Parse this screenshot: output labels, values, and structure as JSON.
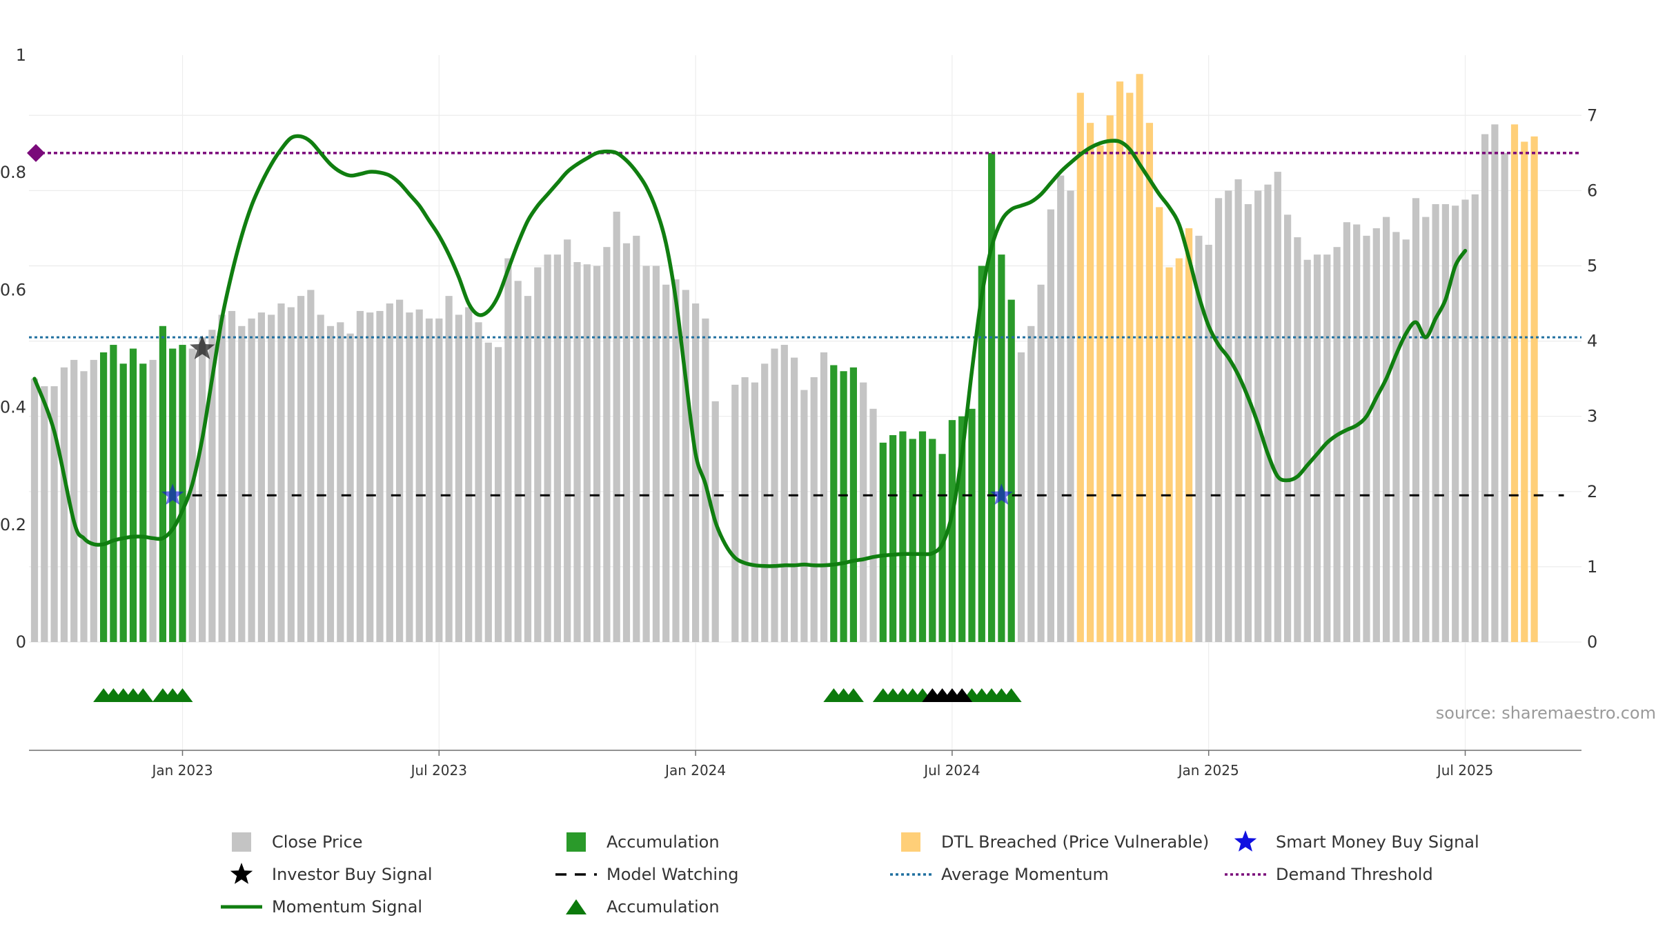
{
  "source": "source: sharemaestro.com",
  "colors": {
    "close_price": "#c4c4c4",
    "accumulation": "#2a9a2a",
    "dtl_breached": "#ffcf78",
    "momentum": "#107e10",
    "smart_money": "#1010e0",
    "investor_buy": "#000000",
    "model_watching": "#000000",
    "average_momentum": "#1f6f9f",
    "demand_threshold": "#7a0a7a"
  },
  "legend": [
    {
      "key": "close_price",
      "label": "Close Price",
      "icon": "square-icon"
    },
    {
      "key": "accumulation",
      "label": "Accumulation",
      "icon": "square-icon"
    },
    {
      "key": "dtl_breached",
      "label": "DTL Breached (Price Vulnerable)",
      "icon": "square-icon"
    },
    {
      "key": "smart_money",
      "label": "Smart Money Buy Signal",
      "icon": "star-icon"
    },
    {
      "key": "investor_buy",
      "label": "Investor Buy Signal",
      "icon": "star-icon"
    },
    {
      "key": "model_watching",
      "label": "Model Watching",
      "icon": "dash-icon"
    },
    {
      "key": "average_momentum",
      "label": "Average Momentum",
      "icon": "dotted-line-icon"
    },
    {
      "key": "demand_threshold",
      "label": "Demand Threshold",
      "icon": "dotted-line-icon"
    },
    {
      "key": "momentum",
      "label": "Momentum Signal",
      "icon": "line-icon"
    },
    {
      "key": "accumulation",
      "label": "Accumulation",
      "icon": "triangle-icon"
    }
  ],
  "chart_data": {
    "type": "bar",
    "x_ticks": [
      "Jan 2023",
      "Jul 2023",
      "Jan 2024",
      "Jul 2024",
      "Jan 2025",
      "Jul 2025"
    ],
    "x_tick_weeks": [
      15,
      41,
      67,
      93,
      119,
      145
    ],
    "left_axis": {
      "ticks": [
        "0",
        "0.2",
        "0.4",
        "0.6",
        "0.8",
        "1"
      ],
      "ylim": [
        0,
        1
      ]
    },
    "right_axis": {
      "ticks": [
        "0",
        "1",
        "2",
        "3",
        "4",
        "5",
        "6",
        "7"
      ],
      "ylim": [
        0,
        7.8
      ]
    },
    "grid": true,
    "legend_position": "bottom",
    "close_price": {
      "values": [
        3.5,
        3.4,
        3.4,
        3.65,
        3.75,
        3.6,
        3.75,
        3.85,
        3.95,
        3.7,
        3.9,
        3.7,
        3.75,
        4.2,
        3.9,
        3.95,
        3.9,
        4.05,
        4.15,
        4.35,
        4.4,
        4.2,
        4.3,
        4.38,
        4.35,
        4.5,
        4.45,
        4.6,
        4.68,
        4.35,
        4.2,
        4.25,
        4.1,
        4.4,
        4.38,
        4.4,
        4.5,
        4.55,
        4.38,
        4.42,
        4.3,
        4.3,
        4.6,
        4.35,
        4.45,
        4.25,
        3.98,
        3.92,
        5.1,
        4.8,
        4.6,
        4.98,
        5.15,
        5.15,
        5.35,
        5.05,
        5.02,
        5.0,
        5.25,
        5.72,
        5.3,
        5.4,
        5.0,
        5.0,
        4.75,
        4.82,
        4.68,
        4.5,
        4.3,
        3.2,
        0,
        3.42,
        3.52,
        3.45,
        3.7,
        3.9,
        3.95,
        3.78,
        3.35,
        3.52,
        3.85,
        3.68,
        3.6,
        3.65,
        3.45,
        3.1,
        2.65,
        2.75,
        2.8,
        2.7,
        2.8,
        2.7,
        2.5,
        2.95,
        3.0,
        3.1,
        5.0,
        6.5,
        5.15,
        4.55,
        3.85,
        4.2,
        4.75,
        5.75,
        6.2,
        6.0,
        7.3,
        6.9,
        6.6,
        7.0,
        7.45,
        7.3,
        7.55,
        6.9,
        5.78,
        4.98,
        5.1,
        5.5,
        5.4,
        5.28,
        5.9,
        6.0,
        6.15,
        5.82,
        6.0,
        6.08,
        6.25,
        5.68,
        5.38,
        5.08,
        5.15,
        5.15,
        5.25,
        5.58,
        5.55,
        5.4,
        5.5,
        5.65,
        5.45,
        5.35,
        5.9,
        5.65,
        5.82,
        5.82,
        5.8,
        5.88,
        5.95,
        6.75,
        6.88,
        6.5,
        6.88,
        6.65,
        6.72
      ],
      "accumulation_bars": [
        7,
        8,
        9,
        10,
        11,
        13,
        14,
        15,
        81,
        82,
        83,
        86,
        87,
        88,
        89,
        90,
        91,
        92,
        93,
        94,
        95,
        96,
        97,
        98,
        99
      ],
      "dtl_breached_bars": [
        106,
        107,
        108,
        109,
        110,
        111,
        112,
        113,
        114,
        115,
        116,
        117,
        150,
        151,
        152,
        153,
        154,
        155
      ]
    },
    "momentum_signal": {
      "points": [
        [
          0,
          3.5
        ],
        [
          2,
          2.8
        ],
        [
          4,
          1.6
        ],
        [
          5,
          1.38
        ],
        [
          6,
          1.3
        ],
        [
          7,
          1.3
        ],
        [
          8,
          1.35
        ],
        [
          9,
          1.38
        ],
        [
          10,
          1.4
        ],
        [
          11,
          1.4
        ],
        [
          12,
          1.38
        ],
        [
          13,
          1.38
        ],
        [
          14,
          1.5
        ],
        [
          15,
          1.75
        ],
        [
          16,
          2.1
        ],
        [
          17,
          2.7
        ],
        [
          18,
          3.5
        ],
        [
          19,
          4.3
        ],
        [
          20,
          4.9
        ],
        [
          21,
          5.4
        ],
        [
          22,
          5.8
        ],
        [
          23,
          6.1
        ],
        [
          24,
          6.35
        ],
        [
          25,
          6.55
        ],
        [
          26,
          6.7
        ],
        [
          27,
          6.72
        ],
        [
          28,
          6.65
        ],
        [
          29,
          6.5
        ],
        [
          30,
          6.35
        ],
        [
          31,
          6.25
        ],
        [
          32,
          6.2
        ],
        [
          33,
          6.22
        ],
        [
          34,
          6.25
        ],
        [
          35,
          6.24
        ],
        [
          36,
          6.2
        ],
        [
          37,
          6.1
        ],
        [
          38,
          5.95
        ],
        [
          39,
          5.8
        ],
        [
          40,
          5.6
        ],
        [
          41,
          5.4
        ],
        [
          42,
          5.15
        ],
        [
          43,
          4.85
        ],
        [
          44,
          4.5
        ],
        [
          45,
          4.35
        ],
        [
          46,
          4.4
        ],
        [
          47,
          4.6
        ],
        [
          48,
          4.95
        ],
        [
          49,
          5.3
        ],
        [
          50,
          5.6
        ],
        [
          51,
          5.8
        ],
        [
          52,
          5.95
        ],
        [
          53,
          6.1
        ],
        [
          54,
          6.25
        ],
        [
          55,
          6.35
        ],
        [
          56,
          6.43
        ],
        [
          57,
          6.5
        ],
        [
          58,
          6.52
        ],
        [
          59,
          6.5
        ],
        [
          60,
          6.4
        ],
        [
          61,
          6.25
        ],
        [
          62,
          6.05
        ],
        [
          63,
          5.75
        ],
        [
          64,
          5.3
        ],
        [
          65,
          4.55
        ],
        [
          66,
          3.5
        ],
        [
          67,
          2.5
        ],
        [
          68,
          2.1
        ],
        [
          69,
          1.6
        ],
        [
          70,
          1.3
        ],
        [
          71,
          1.12
        ],
        [
          72,
          1.05
        ],
        [
          73,
          1.02
        ],
        [
          74,
          1.01
        ],
        [
          75,
          1.01
        ],
        [
          76,
          1.02
        ],
        [
          77,
          1.02
        ],
        [
          78,
          1.03
        ],
        [
          79,
          1.02
        ],
        [
          80,
          1.02
        ],
        [
          81,
          1.03
        ],
        [
          82,
          1.05
        ],
        [
          83,
          1.08
        ],
        [
          84,
          1.1
        ],
        [
          85,
          1.13
        ],
        [
          86,
          1.15
        ],
        [
          87,
          1.16
        ],
        [
          88,
          1.17
        ],
        [
          89,
          1.17
        ],
        [
          90,
          1.17
        ],
        [
          91,
          1.18
        ],
        [
          92,
          1.3
        ],
        [
          93,
          1.7
        ],
        [
          94,
          2.5
        ],
        [
          95,
          3.6
        ],
        [
          96,
          4.6
        ],
        [
          97,
          5.25
        ],
        [
          98,
          5.6
        ],
        [
          99,
          5.75
        ],
        [
          100,
          5.8
        ],
        [
          101,
          5.85
        ],
        [
          102,
          5.95
        ],
        [
          103,
          6.1
        ],
        [
          104,
          6.25
        ],
        [
          105,
          6.37
        ],
        [
          106,
          6.48
        ],
        [
          107,
          6.57
        ],
        [
          108,
          6.63
        ],
        [
          109,
          6.66
        ],
        [
          110,
          6.65
        ],
        [
          111,
          6.55
        ],
        [
          112,
          6.35
        ],
        [
          113,
          6.15
        ],
        [
          114,
          5.95
        ],
        [
          115,
          5.78
        ],
        [
          116,
          5.55
        ],
        [
          117,
          5.1
        ],
        [
          118,
          4.6
        ],
        [
          119,
          4.2
        ],
        [
          120,
          3.95
        ],
        [
          121,
          3.78
        ],
        [
          122,
          3.55
        ],
        [
          123,
          3.25
        ],
        [
          124,
          2.9
        ],
        [
          125,
          2.5
        ],
        [
          126,
          2.2
        ],
        [
          127,
          2.15
        ],
        [
          128,
          2.2
        ],
        [
          129,
          2.35
        ],
        [
          130,
          2.5
        ],
        [
          131,
          2.65
        ],
        [
          132,
          2.75
        ],
        [
          133,
          2.82
        ],
        [
          134,
          2.88
        ],
        [
          135,
          3.0
        ],
        [
          136,
          3.25
        ],
        [
          137,
          3.5
        ],
        [
          138,
          3.82
        ],
        [
          139,
          4.1
        ],
        [
          140,
          4.25
        ],
        [
          141,
          4.05
        ],
        [
          142,
          4.3
        ],
        [
          143,
          4.55
        ],
        [
          144,
          5.0
        ],
        [
          145,
          5.2
        ]
      ]
    },
    "average_momentum": 4.05,
    "demand_threshold": 6.5,
    "model_watching": {
      "y": 1.95,
      "from_week": 16,
      "to_week": 155
    },
    "smart_money_buy_signal": [
      {
        "week": 14,
        "y": 1.95
      },
      {
        "week": 98,
        "y": 1.95
      }
    ],
    "investor_buy_signal": [
      {
        "week": 17,
        "y": 3.9
      }
    ],
    "accumulation_triangles": {
      "green": [
        7,
        8,
        9,
        10,
        11,
        13,
        14,
        15,
        81,
        82,
        83,
        86,
        87,
        88,
        89,
        90,
        95,
        96,
        97,
        98,
        99
      ],
      "black": [
        91,
        92,
        93,
        94
      ]
    }
  }
}
